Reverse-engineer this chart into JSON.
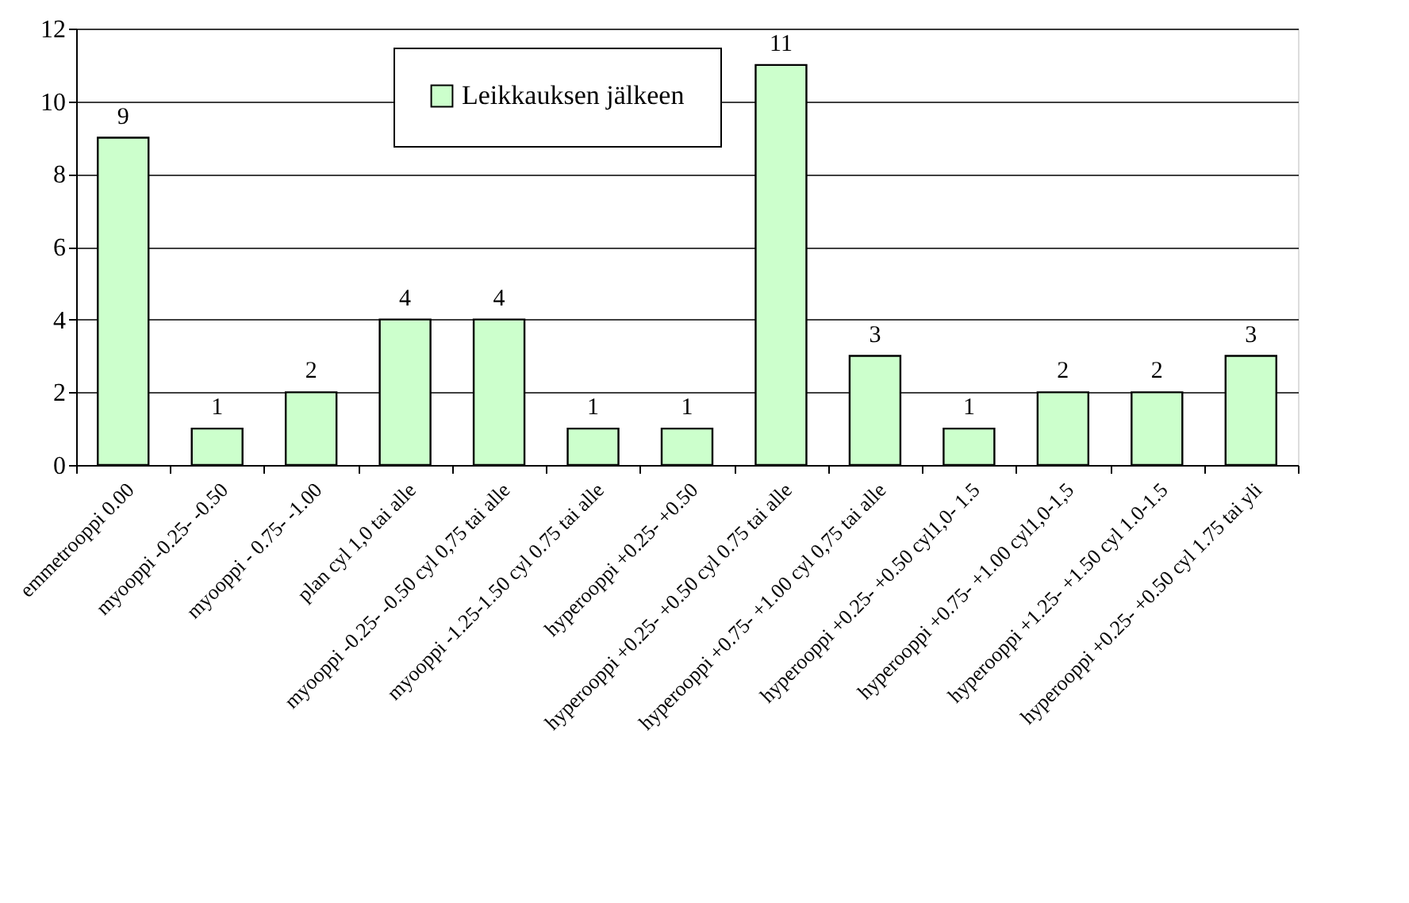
{
  "chart_data": {
    "type": "bar",
    "categories": [
      "emmetrooppi 0.00",
      "myooppi -0.25- -0.50",
      "myooppi - 0.75-  -1.00",
      "plan cyl 1,0 tai alle",
      "myooppi -0.25- -0.50 cyl 0,75 tai alle",
      "myooppi  -1.25-1.50 cyl 0.75 tai alle",
      "hyperooppi +0.25- +0.50",
      "hyperooppi +0.25- +0.50 cyl 0.75 tai alle",
      "hyperooppi +0.75- +1.00 cyl 0,75 tai alle",
      "hyperooppi +0.25- +0.50 cyl1,0- 1.5",
      "hyperooppi +0.75- +1.00 cyl1,0-1,5",
      "hyperooppi +1.25- +1.50 cyl 1.0-1.5",
      "hyperooppi +0.25- +0.50 cyl 1.75 tai yli"
    ],
    "series": [
      {
        "name": "Leikkauksen jälkeen",
        "color": "#ccffcc",
        "values": [
          9,
          1,
          2,
          4,
          4,
          1,
          1,
          11,
          3,
          1,
          2,
          2,
          3
        ]
      }
    ],
    "ylim": [
      0,
      12
    ],
    "yticks": [
      0,
      2,
      4,
      6,
      8,
      10,
      12
    ],
    "grid": "y",
    "legend": "top",
    "data_labels": true
  }
}
